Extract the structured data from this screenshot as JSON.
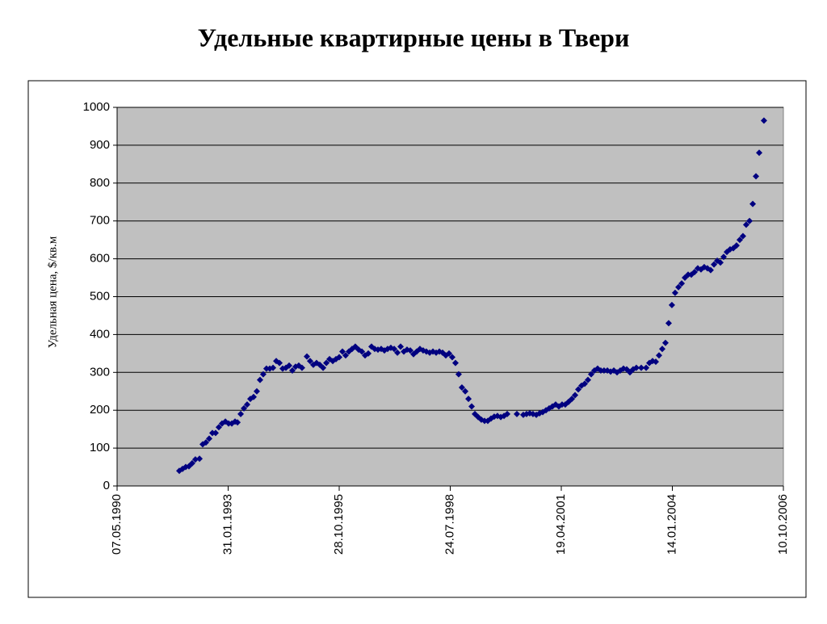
{
  "chart_data": {
    "type": "scatter",
    "title": "Удельные квартирные цены в Твери",
    "ylabel": "Удельная цена, $/кв.м",
    "color": "#000080",
    "grid": true,
    "xlim": [
      33000,
      39000
    ],
    "xticks": [
      {
        "value": 33000,
        "label": "07.05.1990"
      },
      {
        "value": 34000,
        "label": "31.01.1993"
      },
      {
        "value": 35000,
        "label": "28.10.1995"
      },
      {
        "value": 36000,
        "label": "24.07.1998"
      },
      {
        "value": 37000,
        "label": "19.04.2001"
      },
      {
        "value": 38000,
        "label": "14.01.2004"
      },
      {
        "value": 39000,
        "label": "10.10.2006"
      }
    ],
    "ylim": [
      0,
      1000
    ],
    "yticks": [
      0,
      100,
      200,
      300,
      400,
      500,
      600,
      700,
      800,
      900,
      1000
    ],
    "x": [
      33560,
      33589,
      33618,
      33647,
      33676,
      33705,
      33742,
      33771,
      33800,
      33829,
      33858,
      33887,
      33916,
      33945,
      33975,
      34004,
      34033,
      34062,
      34084,
      34113,
      34142,
      34171,
      34200,
      34229,
      34258,
      34287,
      34316,
      34345,
      34375,
      34404,
      34433,
      34462,
      34491,
      34520,
      34549,
      34578,
      34607,
      34636,
      34665,
      34709,
      34738,
      34767,
      34796,
      34825,
      34855,
      34884,
      34913,
      34942,
      34971,
      35000,
      35029,
      35058,
      35087,
      35116,
      35145,
      35175,
      35204,
      35233,
      35262,
      35291,
      35320,
      35349,
      35378,
      35407,
      35436,
      35465,
      35495,
      35524,
      35553,
      35582,
      35611,
      35640,
      35669,
      35698,
      35727,
      35756,
      35785,
      35815,
      35844,
      35873,
      35902,
      35931,
      35960,
      35989,
      36018,
      36047,
      36076,
      36105,
      36135,
      36164,
      36193,
      36222,
      36251,
      36280,
      36309,
      36338,
      36367,
      36396,
      36425,
      36455,
      36484,
      36513,
      36600,
      36658,
      36687,
      36716,
      36745,
      36775,
      36804,
      36833,
      36862,
      36891,
      36920,
      36949,
      36978,
      37007,
      37036,
      37065,
      37095,
      37124,
      37153,
      37182,
      37211,
      37240,
      37269,
      37298,
      37327,
      37356,
      37385,
      37415,
      37444,
      37473,
      37502,
      37531,
      37560,
      37589,
      37618,
      37647,
      37676,
      37720,
      37764,
      37793,
      37822,
      37851,
      37880,
      37909,
      37938,
      37967,
      37996,
      38025,
      38055,
      38084,
      38113,
      38142,
      38171,
      38200,
      38229,
      38258,
      38287,
      38316,
      38345,
      38375,
      38404,
      38433,
      38462,
      38491,
      38520,
      38549,
      38578,
      38607,
      38636,
      38665,
      38695,
      38724,
      38753,
      38782,
      38825
    ],
    "values": [
      40,
      45,
      50,
      52,
      60,
      70,
      72,
      110,
      115,
      125,
      140,
      140,
      155,
      165,
      170,
      165,
      165,
      170,
      168,
      190,
      205,
      215,
      230,
      235,
      250,
      280,
      295,
      310,
      310,
      312,
      330,
      325,
      310,
      312,
      318,
      305,
      315,
      318,
      312,
      342,
      330,
      320,
      325,
      320,
      312,
      325,
      335,
      330,
      335,
      340,
      355,
      345,
      355,
      362,
      368,
      360,
      355,
      345,
      350,
      368,
      362,
      360,
      362,
      358,
      362,
      365,
      362,
      352,
      368,
      355,
      360,
      358,
      348,
      355,
      362,
      358,
      355,
      352,
      355,
      352,
      355,
      352,
      345,
      350,
      340,
      325,
      295,
      260,
      250,
      230,
      210,
      190,
      182,
      175,
      172,
      172,
      178,
      183,
      185,
      182,
      185,
      190,
      190,
      188,
      190,
      192,
      190,
      188,
      192,
      195,
      200,
      205,
      210,
      215,
      210,
      215,
      215,
      222,
      230,
      240,
      255,
      265,
      270,
      280,
      295,
      305,
      310,
      305,
      305,
      305,
      302,
      305,
      300,
      305,
      310,
      308,
      300,
      308,
      312,
      312,
      312,
      325,
      330,
      328,
      345,
      362,
      378,
      430,
      478,
      510,
      525,
      535,
      550,
      558,
      558,
      565,
      575,
      572,
      578,
      575,
      570,
      585,
      595,
      590,
      605,
      618,
      625,
      628,
      635,
      650,
      660,
      690,
      700,
      745,
      818,
      880,
      965
    ]
  }
}
